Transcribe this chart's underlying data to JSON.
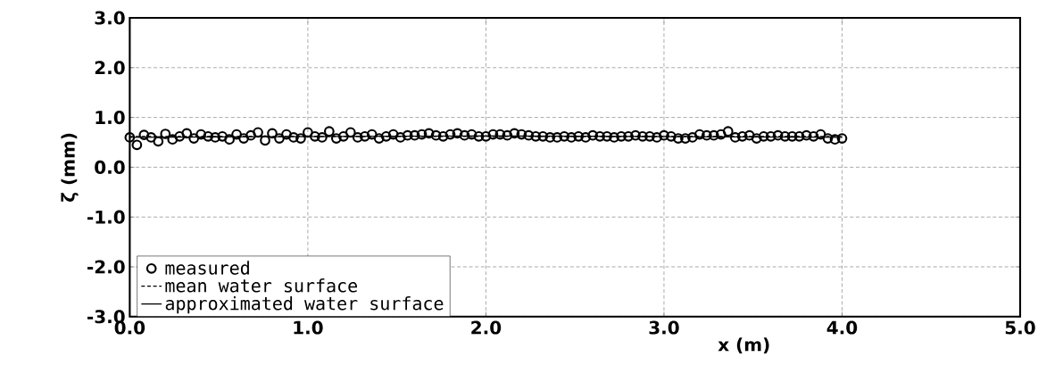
{
  "chart_data": {
    "type": "scatter",
    "xlabel": "x  (m)",
    "ylabel": "ζ (mm)",
    "xlim": [
      0,
      5
    ],
    "ylim": [
      -3,
      3
    ],
    "xticks": [
      {
        "value": 0,
        "label": "0.0"
      },
      {
        "value": 1,
        "label": "1.0"
      },
      {
        "value": 2,
        "label": "2.0"
      },
      {
        "value": 3,
        "label": "3.0"
      },
      {
        "value": 4,
        "label": "4.0"
      },
      {
        "value": 5,
        "label": "5.0"
      }
    ],
    "yticks": [
      {
        "value": -3,
        "label": "-3.0"
      },
      {
        "value": -2,
        "label": "-2.0"
      },
      {
        "value": -1,
        "label": "-1.0"
      },
      {
        "value": 0,
        "label": "0.0"
      },
      {
        "value": 1,
        "label": "1.0"
      },
      {
        "value": 2,
        "label": "2.0"
      },
      {
        "value": 3,
        "label": "3.0"
      }
    ],
    "grid": true,
    "legend": "bottom left",
    "series": [
      {
        "name": "measured",
        "marker": "circle",
        "color": "#000000",
        "x": [
          0,
          0.04,
          0.08,
          0.12,
          0.16,
          0.2,
          0.24,
          0.28,
          0.32,
          0.36,
          0.4,
          0.44,
          0.48,
          0.52,
          0.56,
          0.6,
          0.64,
          0.68,
          0.72,
          0.76,
          0.8,
          0.84,
          0.88,
          0.92,
          0.96,
          1.0,
          1.04,
          1.08,
          1.12,
          1.16,
          1.2,
          1.24,
          1.28,
          1.32,
          1.36,
          1.4,
          1.44,
          1.48,
          1.52,
          1.56,
          1.6,
          1.64,
          1.68,
          1.72,
          1.76,
          1.8,
          1.84,
          1.88,
          1.92,
          1.96,
          2.0,
          2.04,
          2.08,
          2.12,
          2.16,
          2.2,
          2.24,
          2.28,
          2.32,
          2.36,
          2.4,
          2.44,
          2.48,
          2.52,
          2.56,
          2.6,
          2.64,
          2.68,
          2.72,
          2.76,
          2.8,
          2.84,
          2.88,
          2.92,
          2.96,
          3.0,
          3.04,
          3.08,
          3.12,
          3.16,
          3.2,
          3.24,
          3.28,
          3.32,
          3.36,
          3.4,
          3.44,
          3.48,
          3.52,
          3.56,
          3.6,
          3.64,
          3.68,
          3.72,
          3.76,
          3.8,
          3.84,
          3.88,
          3.92,
          3.96,
          4.0
        ],
        "values": [
          0.6,
          0.45,
          0.65,
          0.6,
          0.52,
          0.67,
          0.56,
          0.62,
          0.68,
          0.58,
          0.66,
          0.62,
          0.6,
          0.62,
          0.56,
          0.66,
          0.58,
          0.64,
          0.7,
          0.54,
          0.68,
          0.58,
          0.66,
          0.6,
          0.58,
          0.7,
          0.62,
          0.6,
          0.72,
          0.58,
          0.62,
          0.7,
          0.6,
          0.62,
          0.66,
          0.58,
          0.62,
          0.66,
          0.6,
          0.64,
          0.64,
          0.66,
          0.68,
          0.64,
          0.62,
          0.66,
          0.68,
          0.64,
          0.66,
          0.62,
          0.62,
          0.66,
          0.66,
          0.64,
          0.68,
          0.66,
          0.64,
          0.62,
          0.62,
          0.6,
          0.6,
          0.62,
          0.6,
          0.62,
          0.6,
          0.64,
          0.62,
          0.62,
          0.6,
          0.62,
          0.62,
          0.64,
          0.62,
          0.62,
          0.6,
          0.64,
          0.62,
          0.58,
          0.58,
          0.6,
          0.66,
          0.64,
          0.64,
          0.66,
          0.72,
          0.6,
          0.62,
          0.64,
          0.58,
          0.62,
          0.62,
          0.64,
          0.62,
          0.62,
          0.62,
          0.64,
          0.62,
          0.66,
          0.58,
          0.56,
          0.58
        ]
      },
      {
        "name": "mean water surface",
        "type": "line",
        "line_style": "dashed",
        "color": "#000000",
        "x": [
          0,
          4
        ],
        "values": [
          0.62,
          0.62
        ]
      },
      {
        "name": "approximated water surface",
        "type": "line",
        "line_style": "solid",
        "color": "#000000",
        "x": [
          0,
          2,
          4
        ],
        "values": [
          0.6,
          0.63,
          0.6
        ]
      }
    ]
  }
}
